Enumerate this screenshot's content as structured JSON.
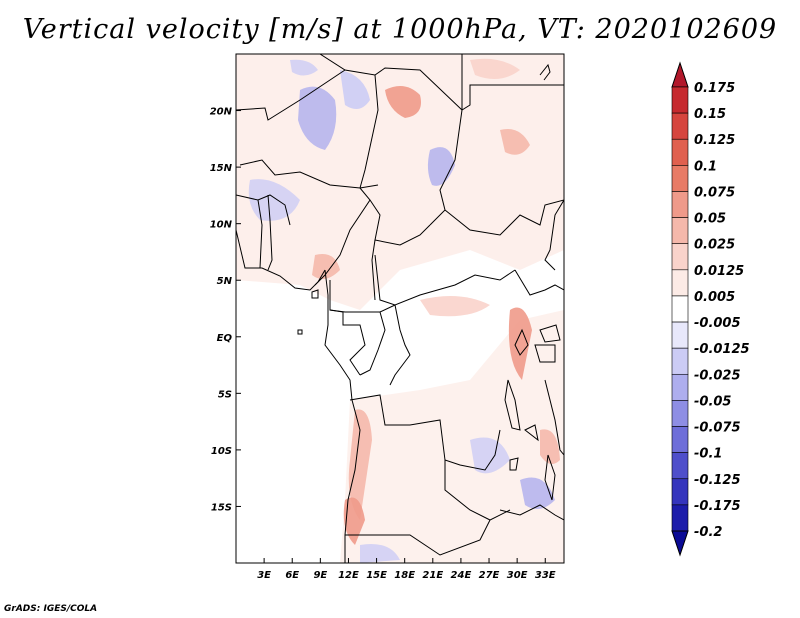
{
  "title": "Vertical velocity [m/s] at 1000hPa, VT: 2020102609",
  "credit": "GrADS: IGES/COLA",
  "map": {
    "lat_labels": [
      "20N",
      "15N",
      "10N",
      "5N",
      "EQ",
      "5S",
      "10S",
      "15S"
    ],
    "lon_labels": [
      "3E",
      "6E",
      "9E",
      "12E",
      "15E",
      "18E",
      "21E",
      "24E",
      "27E",
      "30E",
      "33E"
    ],
    "lat_values": [
      20,
      15,
      10,
      5,
      0,
      -5,
      -10,
      -15
    ],
    "lon_values": [
      3,
      6,
      9,
      12,
      15,
      18,
      21,
      24,
      27,
      30,
      33
    ],
    "lon_range": [
      0,
      35
    ],
    "lat_range": [
      -20,
      25
    ]
  },
  "colorbar": {
    "labels": [
      "0.175",
      "0.15",
      "0.125",
      "0.1",
      "0.075",
      "0.05",
      "0.025",
      "0.0125",
      "0.005",
      "-0.005",
      "-0.0125",
      "-0.025",
      "-0.05",
      "-0.075",
      "-0.1",
      "-0.125",
      "-0.175",
      "-0.2"
    ],
    "colors": [
      "#b2182b",
      "#c62a2f",
      "#d6453e",
      "#e0604f",
      "#e87b66",
      "#ef9a8a",
      "#f5b8ab",
      "#f9d3cb",
      "#fcebe6",
      "#ffffff",
      "#e8e8fb",
      "#ccccf5",
      "#aeaeee",
      "#8e8ee4",
      "#6e6ed9",
      "#4f4fcb",
      "#3535bd",
      "#1d1daa",
      "#0b0b95"
    ]
  }
}
